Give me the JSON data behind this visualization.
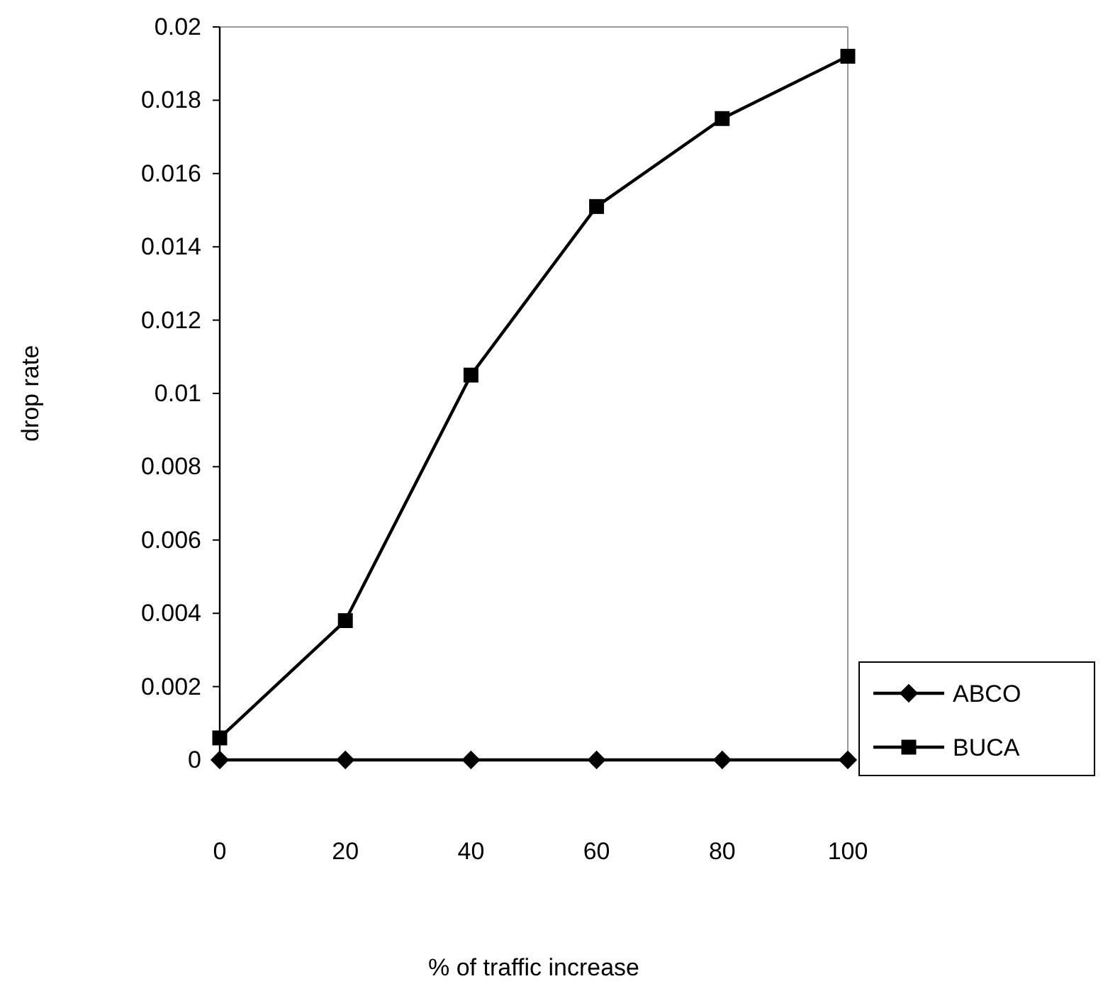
{
  "chart_data": {
    "type": "line",
    "xlabel": "% of traffic increase",
    "ylabel": "drop rate",
    "x": [
      0,
      20,
      40,
      60,
      80,
      100
    ],
    "xlim": [
      0,
      100
    ],
    "xticks": [
      0,
      20,
      40,
      60,
      80,
      100
    ],
    "ylim": [
      0,
      0.02
    ],
    "yticks": [
      0,
      0.002,
      0.004,
      0.006,
      0.008,
      0.01,
      0.012,
      0.014,
      0.016,
      0.018,
      0.02
    ],
    "series": [
      {
        "name": "ABCO",
        "color": "#000000",
        "marker": "diamond",
        "values": [
          0,
          0,
          0,
          0,
          0,
          0
        ]
      },
      {
        "name": "BUCA",
        "color": "#000000",
        "marker": "square",
        "values": [
          0.0006,
          0.0038,
          0.0105,
          0.0151,
          0.0175,
          0.0192
        ]
      }
    ],
    "legend": "right",
    "grid": false,
    "line_style": "solid"
  }
}
